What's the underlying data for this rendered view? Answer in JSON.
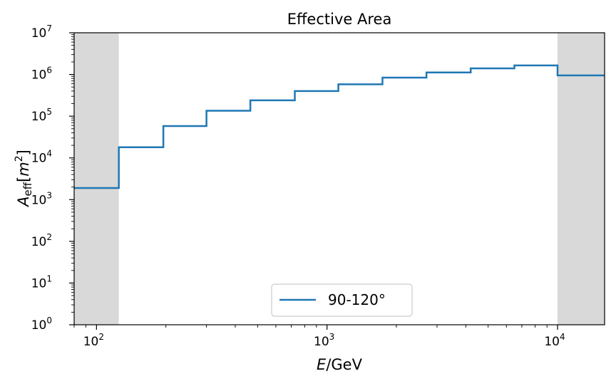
{
  "chart_data": {
    "type": "line",
    "title": "Effective Area",
    "xlabel": {
      "italic": "E",
      "rest": "/GeV"
    },
    "ylabel": {
      "italic": "A",
      "sub": "eff",
      "pre": "[",
      "mid": "m",
      "sup": "2",
      "post": "]"
    },
    "xscale": "log",
    "yscale": "log",
    "xlim": [
      80,
      16000
    ],
    "ylim": [
      1,
      10000000
    ],
    "x_ticks": [
      {
        "value": 100,
        "base": "10",
        "exp": "2"
      },
      {
        "value": 1000,
        "base": "10",
        "exp": "3"
      },
      {
        "value": 10000,
        "base": "10",
        "exp": "4"
      }
    ],
    "y_ticks": [
      {
        "value": 1,
        "base": "10",
        "exp": "0"
      },
      {
        "value": 10,
        "base": "10",
        "exp": "1"
      },
      {
        "value": 100,
        "base": "10",
        "exp": "2"
      },
      {
        "value": 1000,
        "base": "10",
        "exp": "3"
      },
      {
        "value": 10000,
        "base": "10",
        "exp": "4"
      },
      {
        "value": 100000,
        "base": "10",
        "exp": "5"
      },
      {
        "value": 1000000,
        "base": "10",
        "exp": "6"
      },
      {
        "value": 10000000,
        "base": "10",
        "exp": "7"
      }
    ],
    "shaded_regions": [
      {
        "x0": 80,
        "x1": 125,
        "color": "#d9d9d9"
      },
      {
        "x0": 10000,
        "x1": 16000,
        "color": "#d9d9d9"
      }
    ],
    "series": [
      {
        "name": "90-120°",
        "color": "#1f77b4",
        "drawstyle": "steps",
        "bin_edges": [
          80,
          125,
          195,
          300,
          465,
          725,
          1120,
          1740,
          2700,
          4200,
          6500,
          10000,
          16000
        ],
        "values": [
          1900,
          18000,
          58000,
          135000,
          240000,
          400000,
          580000,
          840000,
          1120000,
          1400000,
          1650000,
          950000
        ]
      }
    ],
    "legend": {
      "position": "bottom-center"
    },
    "grid": false
  }
}
